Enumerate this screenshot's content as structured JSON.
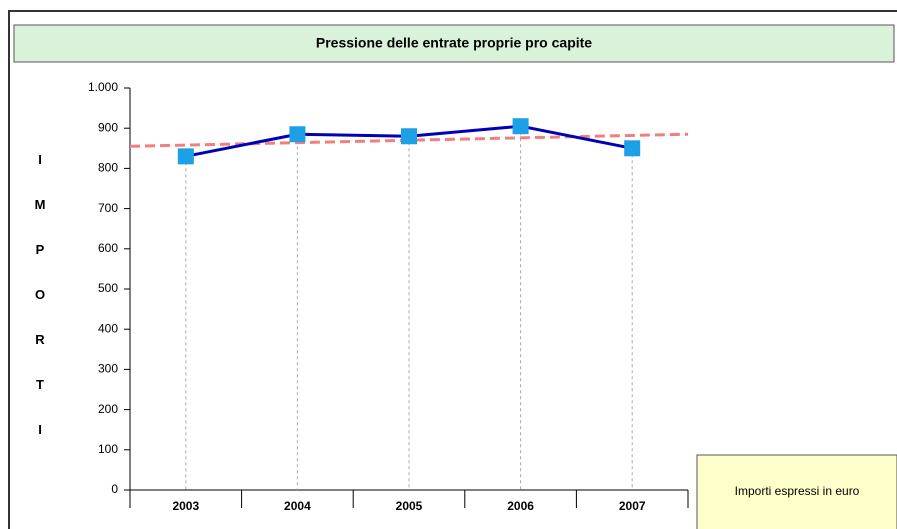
{
  "chart_data": {
    "type": "line",
    "title": "Pressione delle entrate proprie pro capite",
    "y_axis_label": "IMPORTI",
    "note": "Importi espressi in euro",
    "categories": [
      "2003",
      "2004",
      "2005",
      "2006",
      "2007"
    ],
    "series": [
      {
        "name": "Pressione delle entrate proprie pro capite",
        "color": "#0000b4",
        "marker_color": "#1ea0e6",
        "values": [
          830,
          885,
          880,
          905,
          850
        ]
      }
    ],
    "trendline": {
      "color": "#f08080"
    },
    "ylim": [
      0,
      1000
    ],
    "yticks": [
      0,
      100,
      200,
      300,
      400,
      500,
      600,
      700,
      800,
      900,
      {
        "value": 1000,
        "label": "1.000"
      }
    ]
  }
}
